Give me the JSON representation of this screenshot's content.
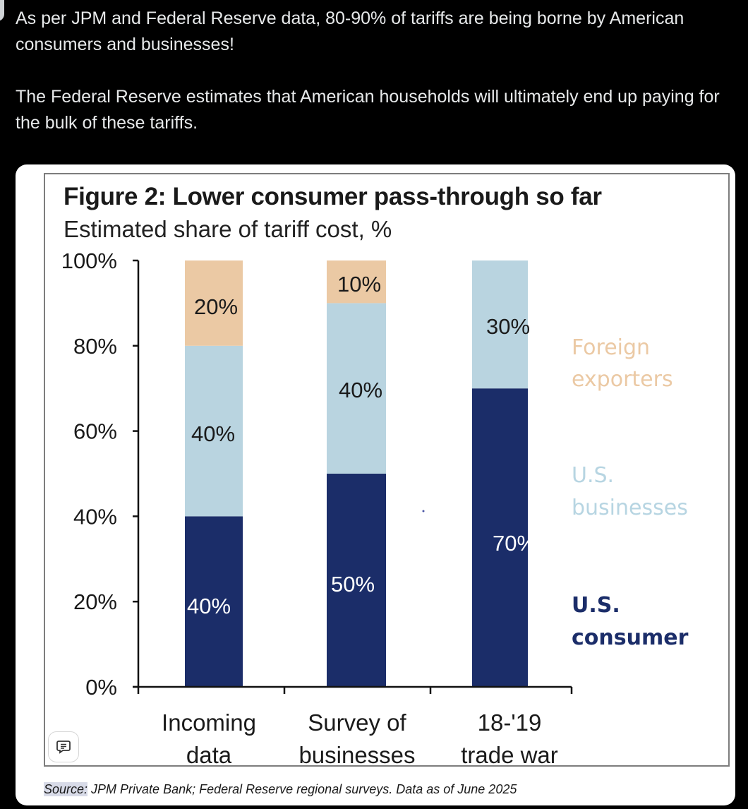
{
  "tweet": {
    "paragraphs": [
      "As per JPM and Federal Reserve data, 80-90% of tariffs are being borne by American consumers and businesses!",
      "The Federal Reserve estimates that American households will ultimately end up paying for the bulk of these tariffs."
    ]
  },
  "figure": {
    "title": "Figure 2: Lower consumer pass-through so far",
    "subtitle": "Estimated share of tariff cost, %",
    "source_label": "Source:",
    "source_text": " JPM Private Bank; Federal Reserve regional surveys. Data as of June 2025",
    "alt_icon": "comment-alt-icon"
  },
  "colors": {
    "us_consumer": "#1b2d69",
    "us_businesses": "#b9d4e0",
    "foreign_exporters": "#ebc9a4",
    "legend_foreign": "#ebc9a4",
    "legend_businesses": "#b7d5e2",
    "legend_consumer": "#1b2d69"
  },
  "chart_data": {
    "type": "bar",
    "stacked": true,
    "title": "Figure 2: Lower consumer pass-through so far",
    "subtitle": "Estimated share of tariff cost, %",
    "categories": [
      [
        "Incoming",
        "data"
      ],
      [
        "Survey of",
        "businesses"
      ],
      [
        "18-'19",
        "trade war"
      ]
    ],
    "series": [
      {
        "name": "U.S. consumer",
        "label_lines": [
          "U.S.",
          "consumer"
        ],
        "values": [
          40,
          50,
          70
        ],
        "labels": [
          "40%",
          "50%",
          "70%"
        ],
        "label_color": "#ffffff"
      },
      {
        "name": "U.S. businesses",
        "label_lines": [
          "U.S.",
          "businesses"
        ],
        "values": [
          40,
          40,
          30
        ],
        "labels": [
          "40%",
          "40%",
          "30%"
        ],
        "label_color": "#1a1a1a"
      },
      {
        "name": "Foreign exporters",
        "label_lines": [
          "Foreign",
          "exporters"
        ],
        "values": [
          20,
          10,
          0
        ],
        "labels": [
          "20%",
          "10%",
          ""
        ],
        "label_color": "#1a1a1a"
      }
    ],
    "yticks": [
      "0%",
      "20%",
      "40%",
      "60%",
      "80%",
      "100%"
    ],
    "ytick_values": [
      0,
      20,
      40,
      60,
      80,
      100
    ],
    "ylim": [
      0,
      100
    ],
    "xlabel": "",
    "ylabel": "",
    "grid": false,
    "legend_position": "right"
  }
}
